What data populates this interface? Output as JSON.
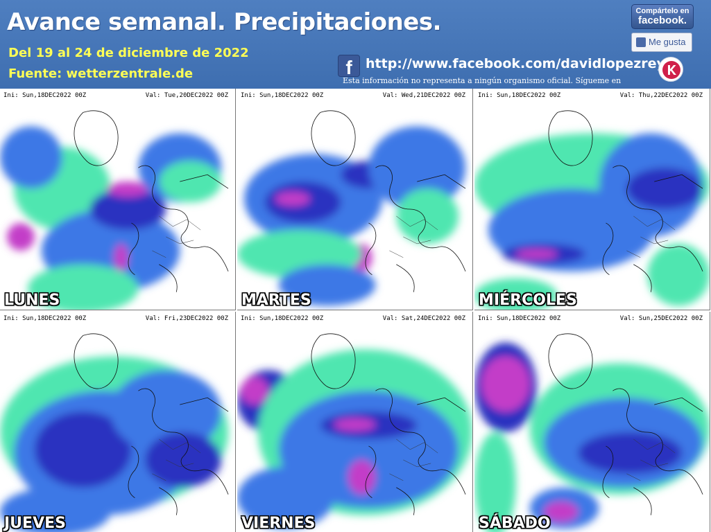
{
  "header": {
    "title": "Avance semanal. Precipitaciones.",
    "subtitle": "Del 19 al 24 de diciembre de 2022",
    "source": "Fuente: wetterzentrale.de",
    "facebook_url": "http://www.facebook.com/davidlopezrey",
    "disclaimer": "Esta información no representa a ningún organismo oficial. Sígueme en",
    "share_line1": "Compártelo en",
    "share_line2": "facebook.",
    "like_label": "Me gusta",
    "icons": [
      "facebook-icon",
      "thumbs-up-icon",
      "brand-logo"
    ]
  },
  "colors": {
    "header_blue": "#4a7abb",
    "subtitle_yellow": "#ffff55",
    "precip_light": "#40e0a8",
    "precip_medium": "#3a6fe0",
    "precip_heavy": "#2a2ab0",
    "precip_extreme": "#c040c0"
  },
  "panels": [
    {
      "ini": "Ini: Sun,18DEC2022 00Z",
      "val": "Val: Tue,20DEC2022 00Z",
      "day": "LUNES"
    },
    {
      "ini": "Ini: Sun,18DEC2022 00Z",
      "val": "Val: Wed,21DEC2022 00Z",
      "day": "MARTES"
    },
    {
      "ini": "Ini: Sun,18DEC2022 00Z",
      "val": "Val: Thu,22DEC2022 00Z",
      "day": "MIÉRCOLES"
    },
    {
      "ini": "Ini: Sun,18DEC2022 00Z",
      "val": "Val: Fri,23DEC2022 00Z",
      "day": "JUEVES"
    },
    {
      "ini": "Ini: Sun,18DEC2022 00Z",
      "val": "Val: Sat,24DEC2022 00Z",
      "day": "VIERNES"
    },
    {
      "ini": "Ini: Sun,18DEC2022 00Z",
      "val": "Val: Sun,25DEC2022 00Z",
      "day": "SÁBADO"
    }
  ]
}
